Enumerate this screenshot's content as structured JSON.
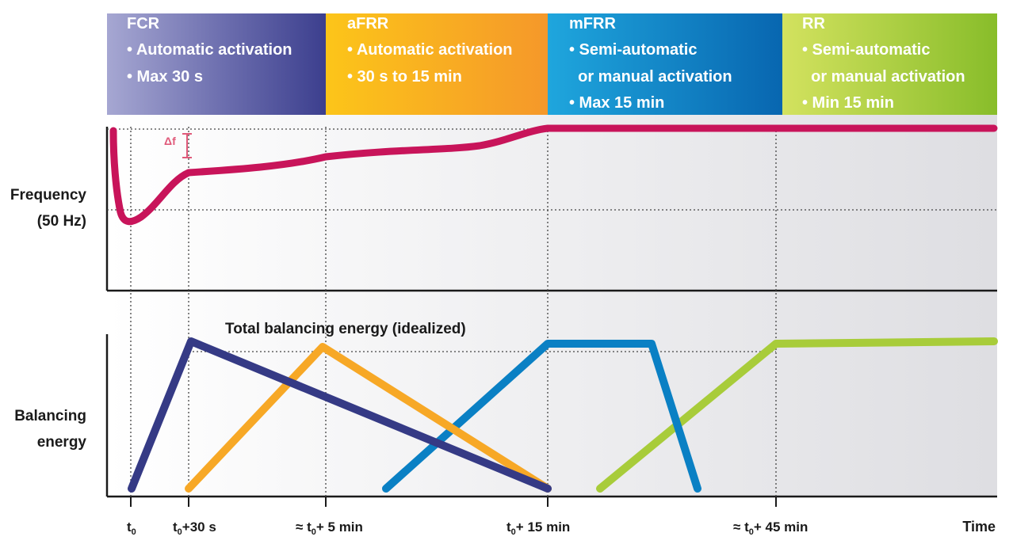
{
  "reserves": [
    {
      "id": "fcr",
      "title": "FCR",
      "lines": [
        "• Automatic activation",
        "• Max 30 s"
      ],
      "color_from": "#a6a7d2",
      "color_to": "#3c3f8e"
    },
    {
      "id": "afrr",
      "title": "aFRR",
      "lines": [
        "• Automatic activation",
        "• 30 s to 15 min"
      ],
      "color_from": "#fcc21b",
      "color_to": "#f59b26"
    },
    {
      "id": "mfrr",
      "title": "mFRR",
      "lines": [
        "• Semi-automatic",
        "  or manual activation",
        "• Max 15 min"
      ],
      "color_from": "#1a9fd9",
      "color_to": "#0a6db5"
    },
    {
      "id": "rr",
      "title": "RR",
      "lines": [
        "• Semi-automatic",
        "  or manual activation",
        "• Min 15 min"
      ],
      "color_from": "#c9dd56",
      "color_to": "#8cbf2c"
    }
  ],
  "labels": {
    "frequency_line1": "Frequency",
    "frequency_line2": "(50 Hz)",
    "balancing_line1": "Balancing",
    "balancing_line2": "energy",
    "delta_f": "Δf",
    "total_balancing": "Total balancing energy (idealized)",
    "time": "Time"
  },
  "time_ticks": [
    {
      "prefix": "",
      "base": "t",
      "sub": "0",
      "suffix": ""
    },
    {
      "prefix": "",
      "base": "t",
      "sub": "0",
      "suffix": "+30 s"
    },
    {
      "prefix": "≈ ",
      "base": "t",
      "sub": "0",
      "suffix": "+ 5 min"
    },
    {
      "prefix": "",
      "base": "t",
      "sub": "0",
      "suffix": "+ 15 min"
    },
    {
      "prefix": "≈ ",
      "base": "t",
      "sub": "0",
      "suffix": "+ 45 min"
    }
  ],
  "colors": {
    "frequency_curve": "#c8145a",
    "fcr": "#353a85",
    "afrr": "#f7a826",
    "mfrr": "#0a80c4",
    "rr": "#a8cc3a",
    "delta_marker": "#e05a7a"
  }
}
